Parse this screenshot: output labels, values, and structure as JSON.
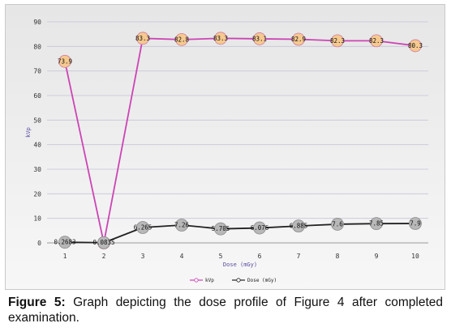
{
  "chart_data": {
    "type": "line",
    "x": [
      1,
      2,
      3,
      4,
      5,
      6,
      7,
      8,
      9,
      10
    ],
    "xlabel": "Dose (mGy)",
    "ylabel": "kVp",
    "ylim": [
      0,
      90
    ],
    "yticks": [
      0,
      10,
      20,
      30,
      40,
      50,
      60,
      70,
      80,
      90
    ],
    "grid": true,
    "legend_position": "bottom",
    "series": [
      {
        "name": "kVp",
        "color": "#cc44b4",
        "marker_fill": "#f5c98f",
        "values": [
          73.9,
          0,
          83.3,
          82.8,
          83.3,
          83.1,
          82.9,
          82.3,
          82.3,
          80.3
        ],
        "labels": [
          "73.9",
          "",
          "83.3",
          "82.8",
          "83.3",
          "83.1",
          "82.9",
          "82.3",
          "82.3",
          "80.3"
        ]
      },
      {
        "name": "Dose (mGy)",
        "color": "#222222",
        "marker_fill": "#b8b8b8",
        "values": [
          0.2683,
          0.0835,
          6.265,
          7.26,
          5.705,
          6.076,
          6.885,
          7.6,
          7.85,
          7.9
        ],
        "labels": [
          "0.2683",
          "0.0835",
          "6.265",
          "7.26",
          "5.705",
          "6.076",
          "6.885",
          "7.6",
          "7.85",
          "7.9"
        ]
      }
    ]
  },
  "caption": {
    "label": "Figure 5:",
    "text": " Graph depicting the dose profile of Figure 4 after completed examination."
  }
}
